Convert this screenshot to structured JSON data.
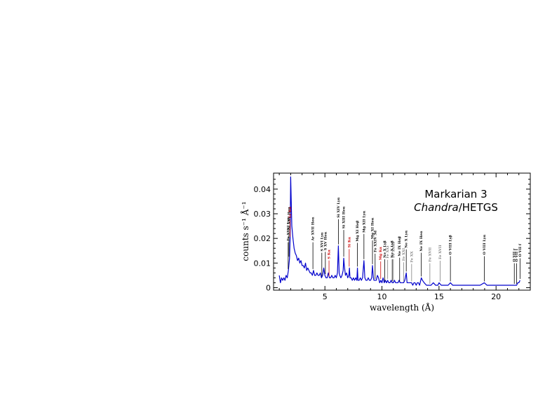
{
  "chart_data": {
    "type": "line",
    "title": "Markarian 3",
    "subtitle_italic": "Chandra",
    "subtitle_rest": "/HETGS",
    "xlabel": "wavelength (Å)",
    "ylabel": "counts s⁻¹ Å⁻¹",
    "xlim": [
      0.5,
      23.0
    ],
    "ylim": [
      -0.001,
      0.0465
    ],
    "xticks": [
      5,
      10,
      15,
      20
    ],
    "yticks": [
      0,
      0.01,
      0.02,
      0.03,
      0.04
    ],
    "xtick_labels": [
      "5",
      "10",
      "15",
      "20"
    ],
    "ytick_labels": [
      "0",
      "0.01",
      "0.02",
      "0.03",
      "0.04"
    ],
    "grid": false,
    "series": [
      {
        "color": "#0000cc",
        "x": [
          1.0,
          1.1,
          1.2,
          1.3,
          1.4,
          1.5,
          1.6,
          1.7,
          1.8,
          1.9,
          1.95,
          2.0,
          2.05,
          2.1,
          2.2,
          2.3,
          2.4,
          2.5,
          2.6,
          2.7,
          2.8,
          2.9,
          3.0,
          3.1,
          3.2,
          3.3,
          3.4,
          3.5,
          3.6,
          3.7,
          3.8,
          3.9,
          4.0,
          4.1,
          4.2,
          4.3,
          4.4,
          4.5,
          4.6,
          4.7,
          4.8,
          4.9,
          5.0,
          5.1,
          5.2,
          5.3,
          5.4,
          5.5,
          5.6,
          5.7,
          5.8,
          5.9,
          6.0,
          6.1,
          6.18,
          6.25,
          6.3,
          6.4,
          6.5,
          6.6,
          6.65,
          6.7,
          6.8,
          6.9,
          7.0,
          7.1,
          7.15,
          7.2,
          7.3,
          7.4,
          7.5,
          7.6,
          7.7,
          7.8,
          7.85,
          7.9,
          8.0,
          8.1,
          8.2,
          8.3,
          8.42,
          8.5,
          8.6,
          8.7,
          8.8,
          8.9,
          9.0,
          9.1,
          9.17,
          9.25,
          9.3,
          9.4,
          9.5,
          9.6,
          9.7,
          9.8,
          9.9,
          10.0,
          10.1,
          10.2,
          10.3,
          10.4,
          10.5,
          10.6,
          10.7,
          10.8,
          10.9,
          11.0,
          11.1,
          11.2,
          11.3,
          11.4,
          11.5,
          11.6,
          11.7,
          11.8,
          11.9,
          12.0,
          12.13,
          12.2,
          12.3,
          12.4,
          12.5,
          12.6,
          12.7,
          12.8,
          12.9,
          13.0,
          13.1,
          13.2,
          13.3,
          13.45,
          13.55,
          13.7,
          13.9,
          14.1,
          14.3,
          14.5,
          14.7,
          14.9,
          15.0,
          15.2,
          15.4,
          15.6,
          15.8,
          16.0,
          16.2,
          16.4,
          16.6,
          16.8,
          17.0,
          17.2,
          17.4,
          17.6,
          17.8,
          18.0,
          18.2,
          18.4,
          18.6,
          18.97,
          19.2,
          19.4,
          19.6,
          19.8,
          20.0,
          20.2,
          20.4,
          20.6,
          20.8,
          21.0,
          21.2,
          21.4,
          21.6,
          21.8,
          21.9,
          22.0,
          22.1
        ],
        "y": [
          0.005,
          0.002,
          0.004,
          0.003,
          0.004,
          0.003,
          0.005,
          0.004,
          0.007,
          0.012,
          0.02,
          0.045,
          0.035,
          0.025,
          0.02,
          0.016,
          0.014,
          0.013,
          0.011,
          0.012,
          0.01,
          0.011,
          0.009,
          0.009,
          0.008,
          0.01,
          0.007,
          0.008,
          0.007,
          0.006,
          0.006,
          0.005,
          0.007,
          0.005,
          0.005,
          0.006,
          0.005,
          0.005,
          0.006,
          0.004,
          0.005,
          0.008,
          0.005,
          0.004,
          0.004,
          0.006,
          0.004,
          0.004,
          0.005,
          0.004,
          0.004,
          0.005,
          0.004,
          0.006,
          0.017,
          0.006,
          0.005,
          0.004,
          0.005,
          0.007,
          0.012,
          0.009,
          0.005,
          0.006,
          0.004,
          0.005,
          0.008,
          0.004,
          0.004,
          0.003,
          0.004,
          0.003,
          0.004,
          0.003,
          0.008,
          0.003,
          0.003,
          0.004,
          0.003,
          0.004,
          0.011,
          0.004,
          0.003,
          0.003,
          0.004,
          0.003,
          0.003,
          0.004,
          0.009,
          0.004,
          0.003,
          0.003,
          0.003,
          0.005,
          0.004,
          0.002,
          0.003,
          0.002,
          0.004,
          0.002,
          0.003,
          0.002,
          0.003,
          0.002,
          0.002,
          0.003,
          0.002,
          0.002,
          0.003,
          0.002,
          0.002,
          0.002,
          0.003,
          0.002,
          0.002,
          0.002,
          0.002,
          0.003,
          0.006,
          0.002,
          0.002,
          0.002,
          0.002,
          0.002,
          0.001,
          0.002,
          0.002,
          0.001,
          0.002,
          0.002,
          0.001,
          0.004,
          0.003,
          0.002,
          0.001,
          0.001,
          0.001,
          0.002,
          0.001,
          0.001,
          0.002,
          0.001,
          0.001,
          0.001,
          0.001,
          0.002,
          0.001,
          0.001,
          0.001,
          0.001,
          0.001,
          0.001,
          0.001,
          0.001,
          0.001,
          0.001,
          0.001,
          0.001,
          0.001,
          0.002,
          0.001,
          0.001,
          0.001,
          0.001,
          0.001,
          0.001,
          0.001,
          0.001,
          0.001,
          0.001,
          0.001,
          0.001,
          0.001,
          0.001,
          0.002,
          0.002,
          0.003
        ]
      }
    ],
    "annotations": [
      {
        "text": "Fe XXVI Lyα",
        "x": 1.78,
        "color": "#000000"
      },
      {
        "text": "Fe XXV Heα",
        "x": 1.85,
        "color": "#000000"
      },
      {
        "text": "Fe Kα",
        "x": 1.94,
        "color": "#cc0000"
      },
      {
        "text": "Ar XVII Heα",
        "x": 3.95,
        "color": "#000000"
      },
      {
        "text": "S XVI Lyα",
        "x": 4.73,
        "color": "#000000"
      },
      {
        "text": "S XV Heα",
        "x": 5.04,
        "color": "#000000"
      },
      {
        "text": "S Kα",
        "x": 5.36,
        "color": "#cc0000"
      },
      {
        "text": "Si XIV Lyα",
        "x": 6.18,
        "color": "#000000"
      },
      {
        "text": "Si XIII Heα",
        "x": 6.65,
        "color": "#000000"
      },
      {
        "text": "Si Kα",
        "x": 7.13,
        "color": "#cc0000"
      },
      {
        "text": "Mg XI Heβ",
        "x": 7.85,
        "color": "#000000"
      },
      {
        "text": "Mg XII Lyα",
        "x": 8.42,
        "color": "#000000"
      },
      {
        "text": "Mg XI Heα",
        "x": 9.17,
        "color": "#000000"
      },
      {
        "text": "Fe XXIV 3d",
        "x": 9.4,
        "color": "#000000"
      },
      {
        "text": "Mg Kα",
        "x": 9.89,
        "color": "#cc0000"
      },
      {
        "text": "Ne X Lyβ",
        "x": 10.24,
        "color": "#000000"
      },
      {
        "text": "Fe XXI",
        "x": 10.5,
        "color": "#808080"
      },
      {
        "text": "Fe XXIII",
        "x": 11.0,
        "color": "#808080"
      },
      {
        "text": "Ne X Lyβ",
        "x": 10.9,
        "color": "#000000"
      },
      {
        "text": "Ne IX Heβ",
        "x": 11.55,
        "color": "#000000"
      },
      {
        "text": "Fe XXI",
        "x": 11.9,
        "color": "#808080"
      },
      {
        "text": "Ne X Lyα",
        "x": 12.13,
        "color": "#000000"
      },
      {
        "text": "Fe XX",
        "x": 12.6,
        "color": "#808080"
      },
      {
        "text": "Ne IX Heα",
        "x": 13.45,
        "color": "#000000"
      },
      {
        "text": "Fe XVII",
        "x": 14.2,
        "color": "#808080"
      },
      {
        "text": "Fe XVII",
        "x": 15.1,
        "color": "#808080"
      },
      {
        "text": "O VIII Lyβ",
        "x": 16.0,
        "color": "#000000"
      },
      {
        "text": "O VIII Lyα",
        "x": 18.97,
        "color": "#000000"
      },
      {
        "text": "O VII r",
        "x": 21.6,
        "color": "#000000"
      },
      {
        "text": "O VII i",
        "x": 21.8,
        "color": "#000000"
      },
      {
        "text": "O VII f",
        "x": 22.1,
        "color": "#000000"
      }
    ]
  }
}
